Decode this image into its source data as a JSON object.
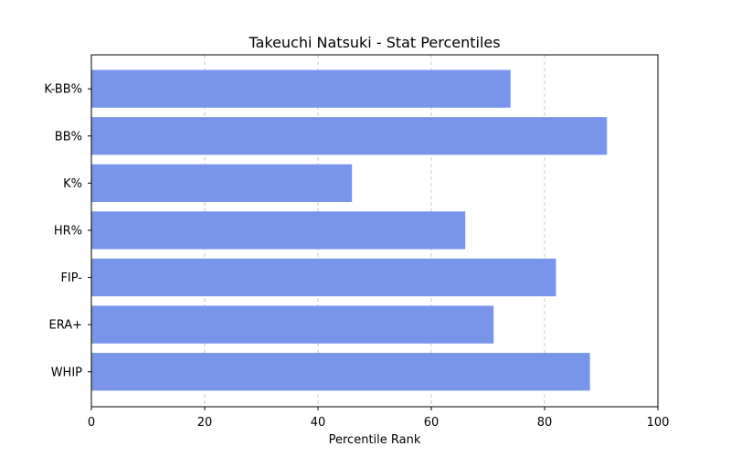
{
  "chart_data": {
    "type": "bar",
    "orientation": "horizontal",
    "title": "Takeuchi Natsuki - Stat Percentiles",
    "xlabel": "Percentile Rank",
    "ylabel": "",
    "categories": [
      "K-BB%",
      "BB%",
      "K%",
      "HR%",
      "FIP-",
      "ERA+",
      "WHIP"
    ],
    "values": [
      74,
      91,
      46,
      66,
      82,
      71,
      88
    ],
    "xlim": [
      0,
      100
    ],
    "xticks": [
      0,
      20,
      40,
      60,
      80,
      100
    ],
    "grid": "x-dashed",
    "bar_color": "#7995e9",
    "grid_color": "#c8c8c8"
  }
}
